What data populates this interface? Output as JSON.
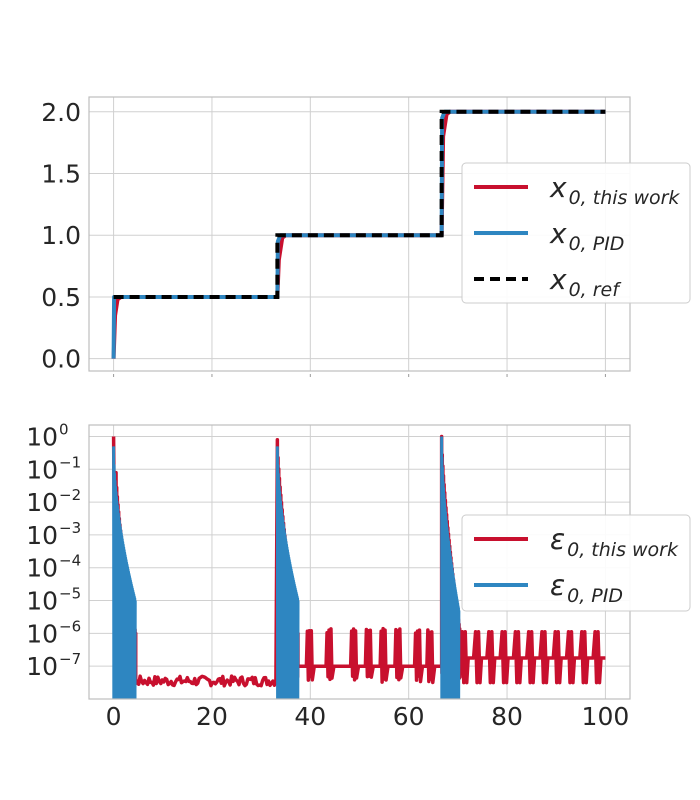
{
  "colors": {
    "this_work": "#c8102e",
    "pid": "#2e86c1",
    "ref": "#000000",
    "grid": "#d0d0d0",
    "frame": "#bdbdbd"
  },
  "chart_data": [
    {
      "type": "line",
      "xlim": [
        -5,
        105
      ],
      "ylim": [
        -0.1,
        2.12
      ],
      "yticks": [
        "0.0",
        "0.5",
        "1.0",
        "1.5",
        "2.0"
      ],
      "ytick_values": [
        0,
        0.5,
        1.0,
        1.5,
        2.0
      ],
      "xtick_values": [
        0,
        20,
        40,
        60,
        80,
        100
      ],
      "grid": true,
      "legend_position": "right",
      "series": [
        {
          "name": "x_{0,this work}",
          "label_main": "x",
          "label_sub": "0, this work",
          "style": "solid",
          "x": [
            0,
            0.3,
            0.8,
            1.5,
            33.3,
            33.6,
            34.3,
            35.0,
            66.7,
            67.0,
            67.7,
            68.4,
            100
          ],
          "y": [
            0,
            0.35,
            0.48,
            0.5,
            0.5,
            0.8,
            0.98,
            1.0,
            1.0,
            1.8,
            1.98,
            2.0,
            2.0
          ]
        },
        {
          "name": "x_{0,PID}",
          "label_main": "x",
          "label_sub": "0, PID",
          "style": "dashed",
          "x": [
            0,
            0.1,
            0.4,
            33.3,
            33.4,
            33.9,
            66.7,
            66.8,
            67.3,
            100
          ],
          "y": [
            0,
            0.5,
            0.5,
            0.5,
            0.95,
            1.0,
            1.0,
            1.95,
            2.0,
            2.0
          ]
        },
        {
          "name": "x_{0,ref}",
          "label_main": "x",
          "label_sub": "0, ref",
          "style": "dashed",
          "x": [
            0,
            0,
            33.3,
            33.3,
            66.7,
            66.7,
            100
          ],
          "y": [
            0.5,
            0.5,
            0.5,
            1.0,
            1.0,
            2.0,
            2.0
          ]
        }
      ]
    },
    {
      "type": "line",
      "yscale": "log",
      "xlim": [
        -5,
        105
      ],
      "ylim_exp": [
        -8.0,
        0.35
      ],
      "xticks": [
        "0",
        "20",
        "40",
        "60",
        "80",
        "100"
      ],
      "xtick_values": [
        0,
        20,
        40,
        60,
        80,
        100
      ],
      "ytick_exps": [
        0,
        -1,
        -2,
        -3,
        -4,
        -5,
        -6,
        -7
      ],
      "ytick_base": "10",
      "ytick_exp_labels": [
        "0",
        "−1",
        "−2",
        "−3",
        "−4",
        "−5",
        "−6",
        "−7"
      ],
      "grid": true,
      "legend_position": "right",
      "series": [
        {
          "name": "ε_{0,this work}",
          "label_main": "ε",
          "label_sub": "0, this work",
          "segments": [
            {
              "x_start": 0,
              "x_end": 0.5,
              "kind": "spike",
              "log_high": 0.0,
              "log_low": -2.6
            },
            {
              "x_start": 0.5,
              "x_end": 4.5,
              "kind": "decay",
              "log_from": -1.1,
              "log_to": -6.0,
              "log_floor": -7.5
            },
            {
              "x_start": 4.5,
              "x_end": 33.3,
              "kind": "noise",
              "log_high": -7.3,
              "log_low": -7.6
            },
            {
              "x_start": 33.3,
              "x_end": 37.5,
              "kind": "decay",
              "log_from": -0.1,
              "log_to": -6.0,
              "log_floor": -7.5
            },
            {
              "x_start": 37.5,
              "x_end": 66.7,
              "kind": "bursts",
              "log_base": -7.0,
              "log_high": -6.0,
              "log_low": -7.5,
              "centers": [
                40,
                44,
                49,
                52,
                55,
                58,
                62,
                64.5
              ]
            },
            {
              "x_start": 66.7,
              "x_end": 70.5,
              "kind": "decay",
              "log_from": 0.0,
              "log_to": -6.0,
              "log_floor": -7.5
            },
            {
              "x_start": 70.5,
              "x_end": 100,
              "kind": "periodic",
              "log_base": -6.75,
              "log_high": -5.95,
              "log_low": -7.5,
              "period": 2.7
            }
          ]
        },
        {
          "name": "ε_{0,PID}",
          "label_main": "ε",
          "label_sub": "0, PID",
          "segments": [
            {
              "x_start": 0,
              "x_end": 4.4,
              "kind": "band",
              "log_top_start": -0.3,
              "log_top_end": -5.0,
              "log_bottom": -8.0
            },
            {
              "x_start": 33.3,
              "x_end": 37.5,
              "kind": "band",
              "log_top_start": -0.3,
              "log_top_end": -5.0,
              "log_bottom": -8.0
            },
            {
              "x_start": 66.7,
              "x_end": 70.2,
              "kind": "band",
              "log_top_start": 0.0,
              "log_top_end": -5.3,
              "log_bottom": -8.0
            }
          ]
        }
      ]
    }
  ]
}
